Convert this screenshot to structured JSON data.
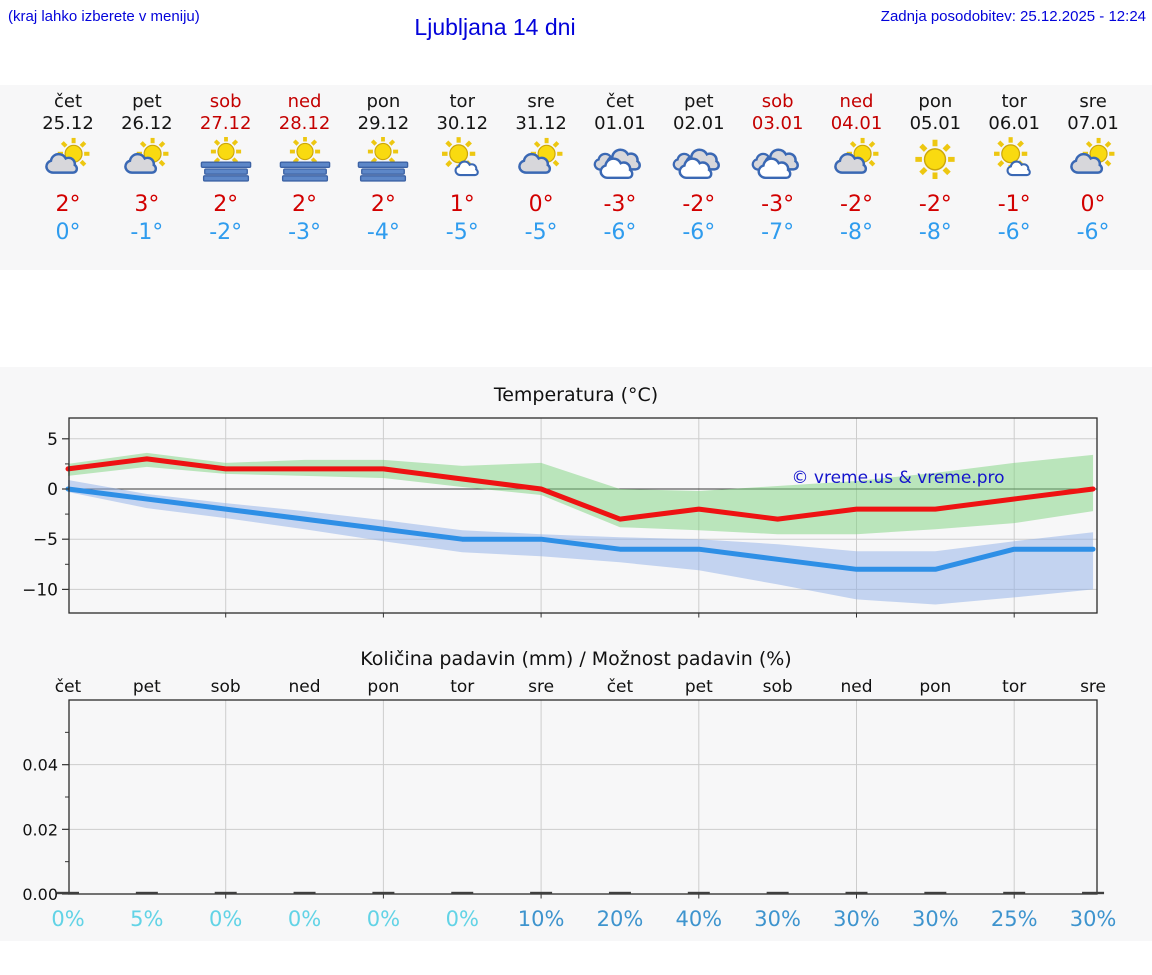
{
  "header": {
    "hint": "(kraj lahko izberete v meniju)",
    "title": "Ljubljana 14 dni",
    "updated": "Zadnja posodobitev: 25.12.2025 - 12:24"
  },
  "strip": {
    "days": [
      {
        "name": "čet",
        "date": "25.12",
        "weekend": false,
        "icon": "sun-cloud",
        "high": "2°",
        "low": "0°"
      },
      {
        "name": "pet",
        "date": "26.12",
        "weekend": false,
        "icon": "sun-cloud",
        "high": "3°",
        "low": "-1°"
      },
      {
        "name": "sob",
        "date": "27.12",
        "weekend": true,
        "icon": "fog-sun",
        "high": "2°",
        "low": "-2°"
      },
      {
        "name": "ned",
        "date": "28.12",
        "weekend": true,
        "icon": "fog-sun",
        "high": "2°",
        "low": "-3°"
      },
      {
        "name": "pon",
        "date": "29.12",
        "weekend": false,
        "icon": "fog-sun",
        "high": "2°",
        "low": "-4°"
      },
      {
        "name": "tor",
        "date": "30.12",
        "weekend": false,
        "icon": "sun-small-cloud",
        "high": "1°",
        "low": "-5°"
      },
      {
        "name": "sre",
        "date": "31.12",
        "weekend": false,
        "icon": "sun-cloud",
        "high": "0°",
        "low": "-5°"
      },
      {
        "name": "čet",
        "date": "01.01",
        "weekend": false,
        "icon": "cloudy",
        "high": "-3°",
        "low": "-6°"
      },
      {
        "name": "pet",
        "date": "02.01",
        "weekend": false,
        "icon": "cloudy",
        "high": "-2°",
        "low": "-6°"
      },
      {
        "name": "sob",
        "date": "03.01",
        "weekend": true,
        "icon": "cloudy",
        "high": "-3°",
        "low": "-7°"
      },
      {
        "name": "ned",
        "date": "04.01",
        "weekend": true,
        "icon": "sun-cloud",
        "high": "-2°",
        "low": "-8°"
      },
      {
        "name": "pon",
        "date": "05.01",
        "weekend": false,
        "icon": "sun",
        "high": "-2°",
        "low": "-8°"
      },
      {
        "name": "tor",
        "date": "06.01",
        "weekend": false,
        "icon": "sun-small-cloud",
        "high": "-1°",
        "low": "-6°"
      },
      {
        "name": "sre",
        "date": "07.01",
        "weekend": false,
        "icon": "sun-cloud",
        "high": "0°",
        "low": "-6°"
      }
    ]
  },
  "watermark": "© vreme.us & vreme.pro",
  "chart_data": [
    {
      "type": "line",
      "title": "Temperatura (°C)",
      "categories": [
        "čet",
        "pet",
        "sob",
        "ned",
        "pon",
        "tor",
        "sre",
        "čet",
        "pet",
        "sob",
        "ned",
        "pon",
        "tor",
        "sre"
      ],
      "series": [
        {
          "name": "max temperature",
          "values": [
            2,
            3,
            2,
            2,
            2,
            1,
            0,
            -3,
            -2,
            -3,
            -2,
            -2,
            -1,
            0
          ],
          "band_upper": [
            2.5,
            3.6,
            2.6,
            2.9,
            2.9,
            2.3,
            2.6,
            0.0,
            -0.2,
            0.3,
            0.8,
            1.6,
            2.6,
            3.4
          ],
          "band_lower": [
            1.3,
            2.2,
            1.5,
            1.3,
            1.1,
            0.2,
            -0.6,
            -3.8,
            -4.1,
            -4.5,
            -4.5,
            -4.0,
            -3.4,
            -2.2
          ],
          "line_color": "#ee1212",
          "band_color": "#7ed47e"
        },
        {
          "name": "min temperature",
          "values": [
            0,
            -1,
            -2,
            -3,
            -4,
            -5,
            -5,
            -6,
            -6,
            -7,
            -8,
            -8,
            -6,
            -6
          ],
          "band_upper": [
            0.9,
            -0.5,
            -1.4,
            -2.2,
            -3.1,
            -4.1,
            -4.5,
            -4.8,
            -5.0,
            -5.5,
            -6.2,
            -6.2,
            -5.2,
            -4.3
          ],
          "band_lower": [
            -0.3,
            -1.9,
            -2.9,
            -4.0,
            -5.2,
            -6.3,
            -6.7,
            -7.3,
            -8.1,
            -9.5,
            -11.0,
            -11.5,
            -10.8,
            -10.0
          ],
          "line_color": "#2e8fe6",
          "band_color": "#8fb0e8"
        }
      ],
      "yticks": [
        5,
        0,
        -5,
        -10
      ],
      "yticks_minor": [
        2.5,
        -2.5,
        -7.5
      ],
      "ylim": [
        -12.3,
        7.1
      ],
      "grid": true,
      "zero_line": true
    },
    {
      "type": "bar",
      "title": "Količina padavin (mm) / Možnost padavin (%)",
      "categories": [
        "čet",
        "pet",
        "sob",
        "ned",
        "pon",
        "tor",
        "sre",
        "čet",
        "pet",
        "sob",
        "ned",
        "pon",
        "tor",
        "sre"
      ],
      "values": [
        0,
        0,
        0,
        0,
        0,
        0,
        0,
        0,
        0,
        0,
        0,
        0,
        0,
        0
      ],
      "percent_labels": [
        "0%",
        "5%",
        "0%",
        "0%",
        "0%",
        "0%",
        "10%",
        "20%",
        "40%",
        "30%",
        "30%",
        "30%",
        "25%",
        "30%"
      ],
      "percent_styles": [
        "cyan",
        "cyan",
        "cyan",
        "cyan",
        "cyan",
        "cyan",
        "blue",
        "blue",
        "blue",
        "blue",
        "blue",
        "blue",
        "blue",
        "blue"
      ],
      "yticks": [
        0,
        0.02,
        0.04
      ],
      "yticks_minor": [
        0.01,
        0.03,
        0.05
      ],
      "ylim": [
        0,
        0.06
      ],
      "grid": true
    }
  ],
  "colors": {
    "header_blue": "#0303da",
    "weekend_red": "#c40000",
    "high_red": "#d20000",
    "low_blue": "#2f9cee",
    "percent_cyan": "#62d3e6",
    "percent_blue": "#3e94ce",
    "watermark_blue": "#1414cc",
    "grid_gray": "#cdcdcd",
    "axis_dark": "#2b2b2b",
    "band_background": "#f7f7f8"
  }
}
